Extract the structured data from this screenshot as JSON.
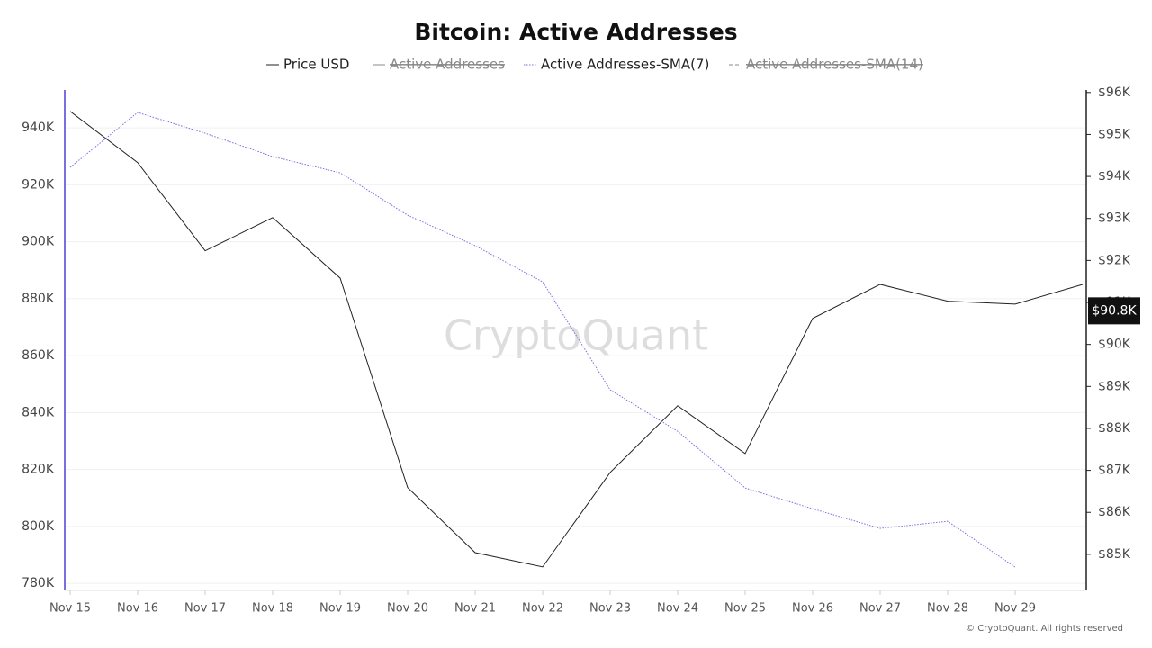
{
  "chart_data": {
    "type": "line",
    "title": "Bitcoin: Active Addresses",
    "categories": [
      "Nov 15",
      "Nov 16",
      "Nov 17",
      "Nov 18",
      "Nov 19",
      "Nov 20",
      "Nov 21",
      "Nov 22",
      "Nov 23",
      "Nov 24",
      "Nov 25",
      "Nov 26",
      "Nov 27",
      "Nov 28",
      "Nov 29",
      null
    ],
    "series": [
      {
        "name": "Price USD",
        "color": "#222222",
        "axis": "y2",
        "dash": "solid",
        "visible": true,
        "values": [
          95550,
          94330,
          92230,
          93020,
          91580,
          86590,
          85040,
          84700,
          86950,
          88540,
          87400,
          90620,
          91430,
          91030,
          90960,
          91430
        ]
      },
      {
        "name": "Active Addresses",
        "color": "#333333",
        "dash": "solid",
        "visible": false,
        "values": [
          null,
          null,
          null,
          null,
          null,
          null,
          null,
          null,
          null,
          null,
          null,
          null,
          null,
          null,
          null,
          null
        ]
      },
      {
        "name": "Active Addresses-SMA(7)",
        "color": "#7b6fe0",
        "dash": "dotted",
        "visible": true,
        "values": [
          926100,
          945400,
          938100,
          929900,
          924200,
          909300,
          898600,
          885900,
          848000,
          833400,
          813500,
          806200,
          799300,
          801800,
          785700,
          null
        ]
      },
      {
        "name": "Active Addresses-SMA(14)",
        "color": "#7b6fe0",
        "dash": "dashed",
        "visible": false,
        "values": [
          null,
          null,
          null,
          null,
          null,
          null,
          null,
          null,
          null,
          null,
          null,
          null,
          null,
          null,
          null,
          null
        ]
      }
    ],
    "ylim": [
      777500,
      953300
    ],
    "yticks": [
      {
        "value": 780000,
        "label": "780K"
      },
      {
        "value": 800000,
        "label": "800K"
      },
      {
        "value": 820000,
        "label": "820K"
      },
      {
        "value": 840000,
        "label": "840K"
      },
      {
        "value": 860000,
        "label": "860K"
      },
      {
        "value": 880000,
        "label": "880K"
      },
      {
        "value": 900000,
        "label": "900K"
      },
      {
        "value": 920000,
        "label": "920K"
      },
      {
        "value": 940000,
        "label": "940K"
      }
    ],
    "y2lim": [
      84140,
      96060
    ],
    "y2ticks": [
      {
        "value": 85000,
        "label": "$85K"
      },
      {
        "value": 86000,
        "label": "$86K"
      },
      {
        "value": 87000,
        "label": "$87K"
      },
      {
        "value": 88000,
        "label": "$88K"
      },
      {
        "value": 89000,
        "label": "$89K"
      },
      {
        "value": 90000,
        "label": "$90K"
      },
      {
        "value": 91000,
        "label": "$91K"
      },
      {
        "value": 92000,
        "label": "$92K"
      },
      {
        "value": 93000,
        "label": "$93K"
      },
      {
        "value": 94000,
        "label": "$94K"
      },
      {
        "value": 95000,
        "label": "$95K"
      },
      {
        "value": 96000,
        "label": "$96K"
      }
    ],
    "current_price": {
      "value": 90800,
      "label": "$90.8K"
    },
    "grid": true,
    "watermark": "CryptoQuant",
    "footer": "© CryptoQuant. All rights reserved"
  }
}
